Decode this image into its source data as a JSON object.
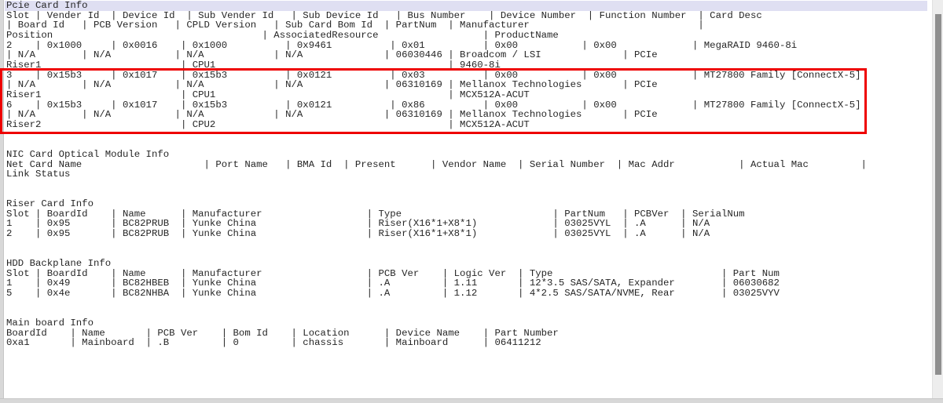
{
  "colors": {
    "selection_bg": "#dfdff2",
    "highlight_border": "#ee0000",
    "scrollbar_track": "#ededed",
    "scrollbar_thumb": "#8f8f8f",
    "window_frame": "#d8d8d8",
    "text": "#262626",
    "background": "#ffffff"
  },
  "terminal": {
    "sections": [
      {
        "id": "pcie-card-info",
        "title": "Pcie Card Info",
        "title_selected": true,
        "blank_lines_after": 2,
        "lines": [
          "Slot | Vender Id  | Device Id  | Sub Vender Id   | Sub Device Id   | Bus Number    | Device Number  | Function Number  | Card Desc",
          "| Board Id   | PCB Version   | CPLD Version   | Sub Card Bom Id  | PartNum  | Manufacturer                             |",
          "Position                                    | AssociatedResource                  | ProductName",
          "2    | 0x1000     | 0x0016    | 0x1000          | 0x9461          | 0x01          | 0x00           | 0x00             | MegaRAID 9460-8i",
          "| N/A        | N/A           | N/A            | N/A              | 06030446 | Broadcom / LSI              | PCIe",
          "Riser1                        | CPU1                                        | 9460-8i",
          "3    | 0x15b3     | 0x1017    | 0x15b3          | 0x0121          | 0x03          | 0x00           | 0x00             | MT27800 Family [ConnectX-5]",
          "| N/A        | N/A           | N/A            | N/A              | 06310169 | Mellanox Technologies       | PCIe",
          "Riser1                        | CPU1                                        | MCX512A-ACUT",
          "6    | 0x15b3     | 0x1017    | 0x15b3          | 0x0121          | 0x86          | 0x00           | 0x00             | MT27800 Family [ConnectX-5]",
          "| N/A        | N/A           | N/A            | N/A              | 06310169 | Mellanox Technologies       | PCIe",
          "Riser2                        | CPU2                                        | MCX512A-ACUT"
        ]
      },
      {
        "id": "nic-card-optical-module-info",
        "title": "NIC Card Optical Module Info",
        "title_selected": false,
        "blank_lines_after": 2,
        "lines": [
          "Net Card Name                     | Port Name   | BMA Id  | Present      | Vendor Name  | Serial Number  | Mac Addr           | Actual Mac         |",
          "Link Status"
        ]
      },
      {
        "id": "riser-card-info",
        "title": "Riser Card Info",
        "title_selected": false,
        "blank_lines_after": 2,
        "lines": [
          "Slot | BoardId    | Name      | Manufacturer                  | Type                          | PartNum   | PCBVer  | SerialNum",
          "1    | 0x95       | BC82PRUB  | Yunke China                   | Riser(X16*1+X8*1)             | 03025VYL  | .A      | N/A",
          "2    | 0x95       | BC82PRUB  | Yunke China                   | Riser(X16*1+X8*1)             | 03025VYL  | .A      | N/A"
        ]
      },
      {
        "id": "hdd-backplane-info",
        "title": "HDD Backplane Info",
        "title_selected": false,
        "blank_lines_after": 2,
        "lines": [
          "Slot | BoardId    | Name      | Manufacturer                  | PCB Ver    | Logic Ver  | Type                             | Part Num",
          "1    | 0x49       | BC82HBEB  | Yunke China                   | .A         | 1.11       | 12*3.5 SAS/SATA, Expander        | 06030682",
          "5    | 0x4e       | BC82NHBA  | Yunke China                   | .A         | 1.12       | 4*2.5 SAS/SATA/NVME, Rear        | 03025VYV"
        ]
      },
      {
        "id": "main-board-info",
        "title": "Main board Info",
        "title_selected": false,
        "blank_lines_after": 0,
        "lines": [
          "BoardId    | Name       | PCB Ver    | Bom Id    | Location      | Device Name    | Part Number",
          "0xa1       | Mainboard  | .B         | 0         | chassis       | Mainboard      | 06411212"
        ]
      }
    ],
    "highlight": {
      "target_section": "pcie-card-info",
      "covers_slots": [
        "3",
        "6"
      ],
      "border_color": "#ee0000"
    }
  }
}
